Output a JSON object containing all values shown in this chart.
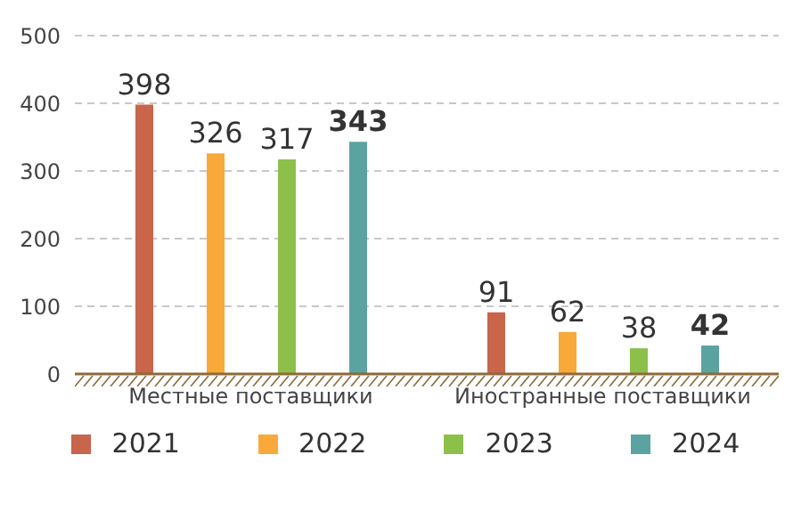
{
  "chart_data": {
    "type": "bar",
    "categories": [
      "Местные поставщики",
      "Иностранные поставщики"
    ],
    "series": [
      {
        "name": "2021",
        "color": "#c8654a",
        "values": [
          398,
          91
        ]
      },
      {
        "name": "2022",
        "color": "#f9a93a",
        "values": [
          326,
          62
        ]
      },
      {
        "name": "2023",
        "color": "#8cc04b",
        "values": [
          317,
          38
        ]
      },
      {
        "name": "2024",
        "color": "#5ba3a0",
        "values": [
          343,
          42
        ]
      }
    ],
    "ylim": [
      0,
      500
    ],
    "yticks": [
      0,
      100,
      200,
      300,
      400,
      500
    ],
    "grid": "y",
    "legend": "bottom",
    "data_labels": true
  }
}
